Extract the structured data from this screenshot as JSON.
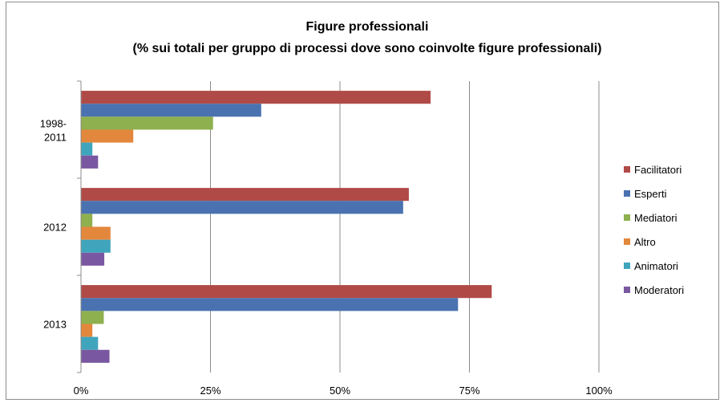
{
  "chart_data": {
    "type": "bar",
    "orientation": "horizontal",
    "title": "Figure professionali",
    "subtitle": "(%  sui totali per gruppo di processi dove sono coinvolte figure professionali)",
    "categories": [
      [
        "1998-",
        "2011"
      ],
      [
        "2012"
      ],
      [
        "2013"
      ]
    ],
    "x_ticks": [
      "0%",
      "25%",
      "50%",
      "75%",
      "100%"
    ],
    "xlim": [
      0,
      100
    ],
    "grid": true,
    "legend_position": "right",
    "series": [
      {
        "name": "Facilitatori",
        "color": "#b04a47",
        "values": [
          67.5,
          63.3,
          79.3
        ]
      },
      {
        "name": "Esperti",
        "color": "#4a72b0",
        "values": [
          34.8,
          62.2,
          72.8
        ]
      },
      {
        "name": "Mediatori",
        "color": "#8fb04e",
        "values": [
          25.5,
          2.2,
          4.4
        ]
      },
      {
        "name": "Altro",
        "color": "#e3873d",
        "values": [
          10.1,
          5.7,
          2.2
        ]
      },
      {
        "name": "Animatori",
        "color": "#3fa5bd",
        "values": [
          2.2,
          5.7,
          3.3
        ]
      },
      {
        "name": "Moderatori",
        "color": "#7a58a1",
        "values": [
          3.3,
          4.5,
          5.5
        ]
      }
    ]
  }
}
